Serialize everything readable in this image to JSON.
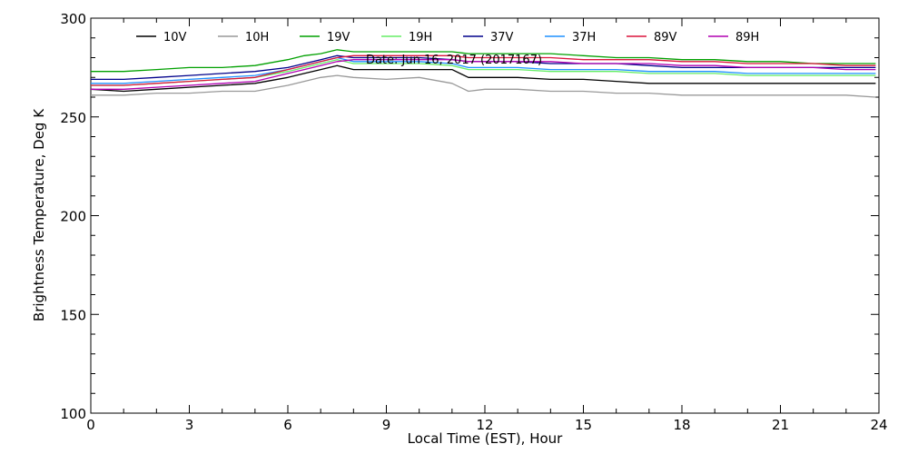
{
  "chart_data": {
    "type": "line",
    "title": "Date: Jun 16, 2017 (2017167)",
    "xlabel": "Local Time (EST), Hour",
    "ylabel": "Brightness Temperature, Deg K",
    "xlim": [
      0,
      24
    ],
    "ylim": [
      100,
      300
    ],
    "xticks": [
      "0",
      "3",
      "6",
      "9",
      "12",
      "15",
      "18",
      "21",
      "24"
    ],
    "yticks": [
      "100",
      "150",
      "200",
      "250",
      "300"
    ],
    "grid": false,
    "legend_position": "top",
    "x": [
      0,
      1,
      2,
      3,
      4,
      5,
      6,
      6.5,
      7,
      7.5,
      8,
      9,
      10,
      11,
      11.5,
      12,
      13,
      14,
      15,
      16,
      17,
      18,
      19,
      20,
      21,
      22,
      23,
      23.9
    ],
    "series": [
      {
        "name": "10V",
        "color": "#000000",
        "values": [
          264,
          263,
          264,
          265,
          266,
          267,
          270,
          272,
          274,
          276,
          274,
          274,
          274,
          274,
          270,
          270,
          270,
          269,
          269,
          268,
          267,
          267,
          267,
          267,
          267,
          267,
          267,
          267
        ]
      },
      {
        "name": "10H",
        "color": "#999999",
        "values": [
          261,
          261,
          262,
          262,
          263,
          263,
          266,
          268,
          270,
          271,
          270,
          269,
          270,
          267,
          263,
          264,
          264,
          263,
          263,
          262,
          262,
          261,
          261,
          261,
          261,
          261,
          261,
          260
        ]
      },
      {
        "name": "19V",
        "color": "#00a000",
        "values": [
          273,
          273,
          274,
          275,
          275,
          276,
          279,
          281,
          282,
          284,
          283,
          283,
          283,
          283,
          282,
          282,
          282,
          282,
          281,
          280,
          280,
          279,
          279,
          278,
          278,
          277,
          277,
          277
        ]
      },
      {
        "name": "19H",
        "color": "#66ee66",
        "values": [
          266,
          266,
          267,
          268,
          269,
          270,
          273,
          275,
          277,
          279,
          277,
          277,
          277,
          276,
          274,
          274,
          274,
          273,
          273,
          273,
          272,
          272,
          272,
          271,
          271,
          271,
          271,
          271
        ]
      },
      {
        "name": "37V",
        "color": "#00008b",
        "values": [
          269,
          269,
          270,
          271,
          272,
          273,
          275,
          277,
          279,
          281,
          280,
          280,
          280,
          279,
          278,
          278,
          278,
          277,
          277,
          277,
          276,
          275,
          275,
          275,
          275,
          275,
          275,
          275
        ]
      },
      {
        "name": "37H",
        "color": "#1e90ff",
        "values": [
          267,
          267,
          268,
          269,
          270,
          271,
          274,
          276,
          278,
          280,
          278,
          278,
          278,
          277,
          275,
          275,
          275,
          274,
          274,
          274,
          273,
          273,
          273,
          272,
          272,
          272,
          272,
          272
        ]
      },
      {
        "name": "89V",
        "color": "#dc143c",
        "values": [
          266,
          266,
          267,
          268,
          269,
          270,
          274,
          276,
          278,
          280,
          281,
          281,
          281,
          281,
          280,
          280,
          280,
          280,
          279,
          279,
          279,
          278,
          278,
          277,
          277,
          277,
          276,
          276
        ]
      },
      {
        "name": "89H",
        "color": "#b000b0",
        "values": [
          264,
          264,
          265,
          266,
          267,
          268,
          272,
          274,
          276,
          278,
          279,
          279,
          279,
          279,
          278,
          278,
          278,
          278,
          277,
          277,
          277,
          276,
          276,
          275,
          275,
          275,
          274,
          274
        ]
      }
    ]
  }
}
